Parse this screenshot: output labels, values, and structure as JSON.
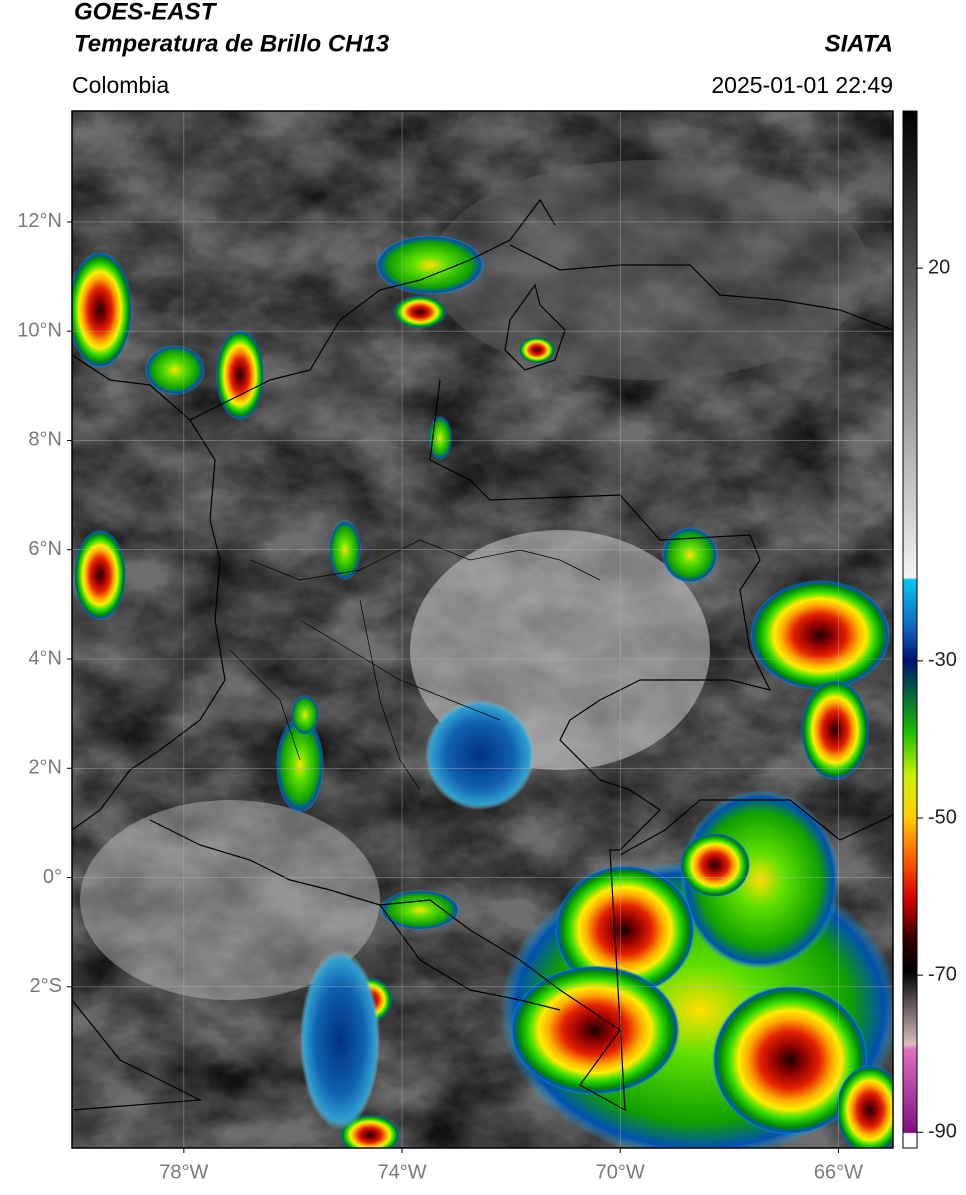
{
  "header": {
    "title": "GOES-EAST",
    "subtitle": "Temperatura de Brillo CH13",
    "source": "SIATA",
    "region": "Colombia",
    "timestamp": "2025-01-01 22:49"
  },
  "map": {
    "lonlim": [
      -80.05,
      -65.0
    ],
    "latlim": [
      -4.95,
      14.03
    ],
    "grid": true,
    "xticks": [
      {
        "value": -78,
        "label": "78°W"
      },
      {
        "value": -74,
        "label": "74°W"
      },
      {
        "value": -70,
        "label": "70°W"
      },
      {
        "value": -66,
        "label": "66°W"
      }
    ],
    "yticks": [
      {
        "value": 12,
        "label": "12°N"
      },
      {
        "value": 10,
        "label": "10°N"
      },
      {
        "value": 8,
        "label": "8°N"
      },
      {
        "value": 6,
        "label": "6°N"
      },
      {
        "value": 4,
        "label": "4°N"
      },
      {
        "value": 2,
        "label": "2°N"
      },
      {
        "value": 0,
        "label": "0°"
      },
      {
        "value": -2,
        "label": "2°S"
      }
    ]
  },
  "colorbar": {
    "lim": [
      -92,
      40
    ],
    "ticks": [
      20,
      -30,
      -50,
      -70,
      -90
    ]
  }
}
